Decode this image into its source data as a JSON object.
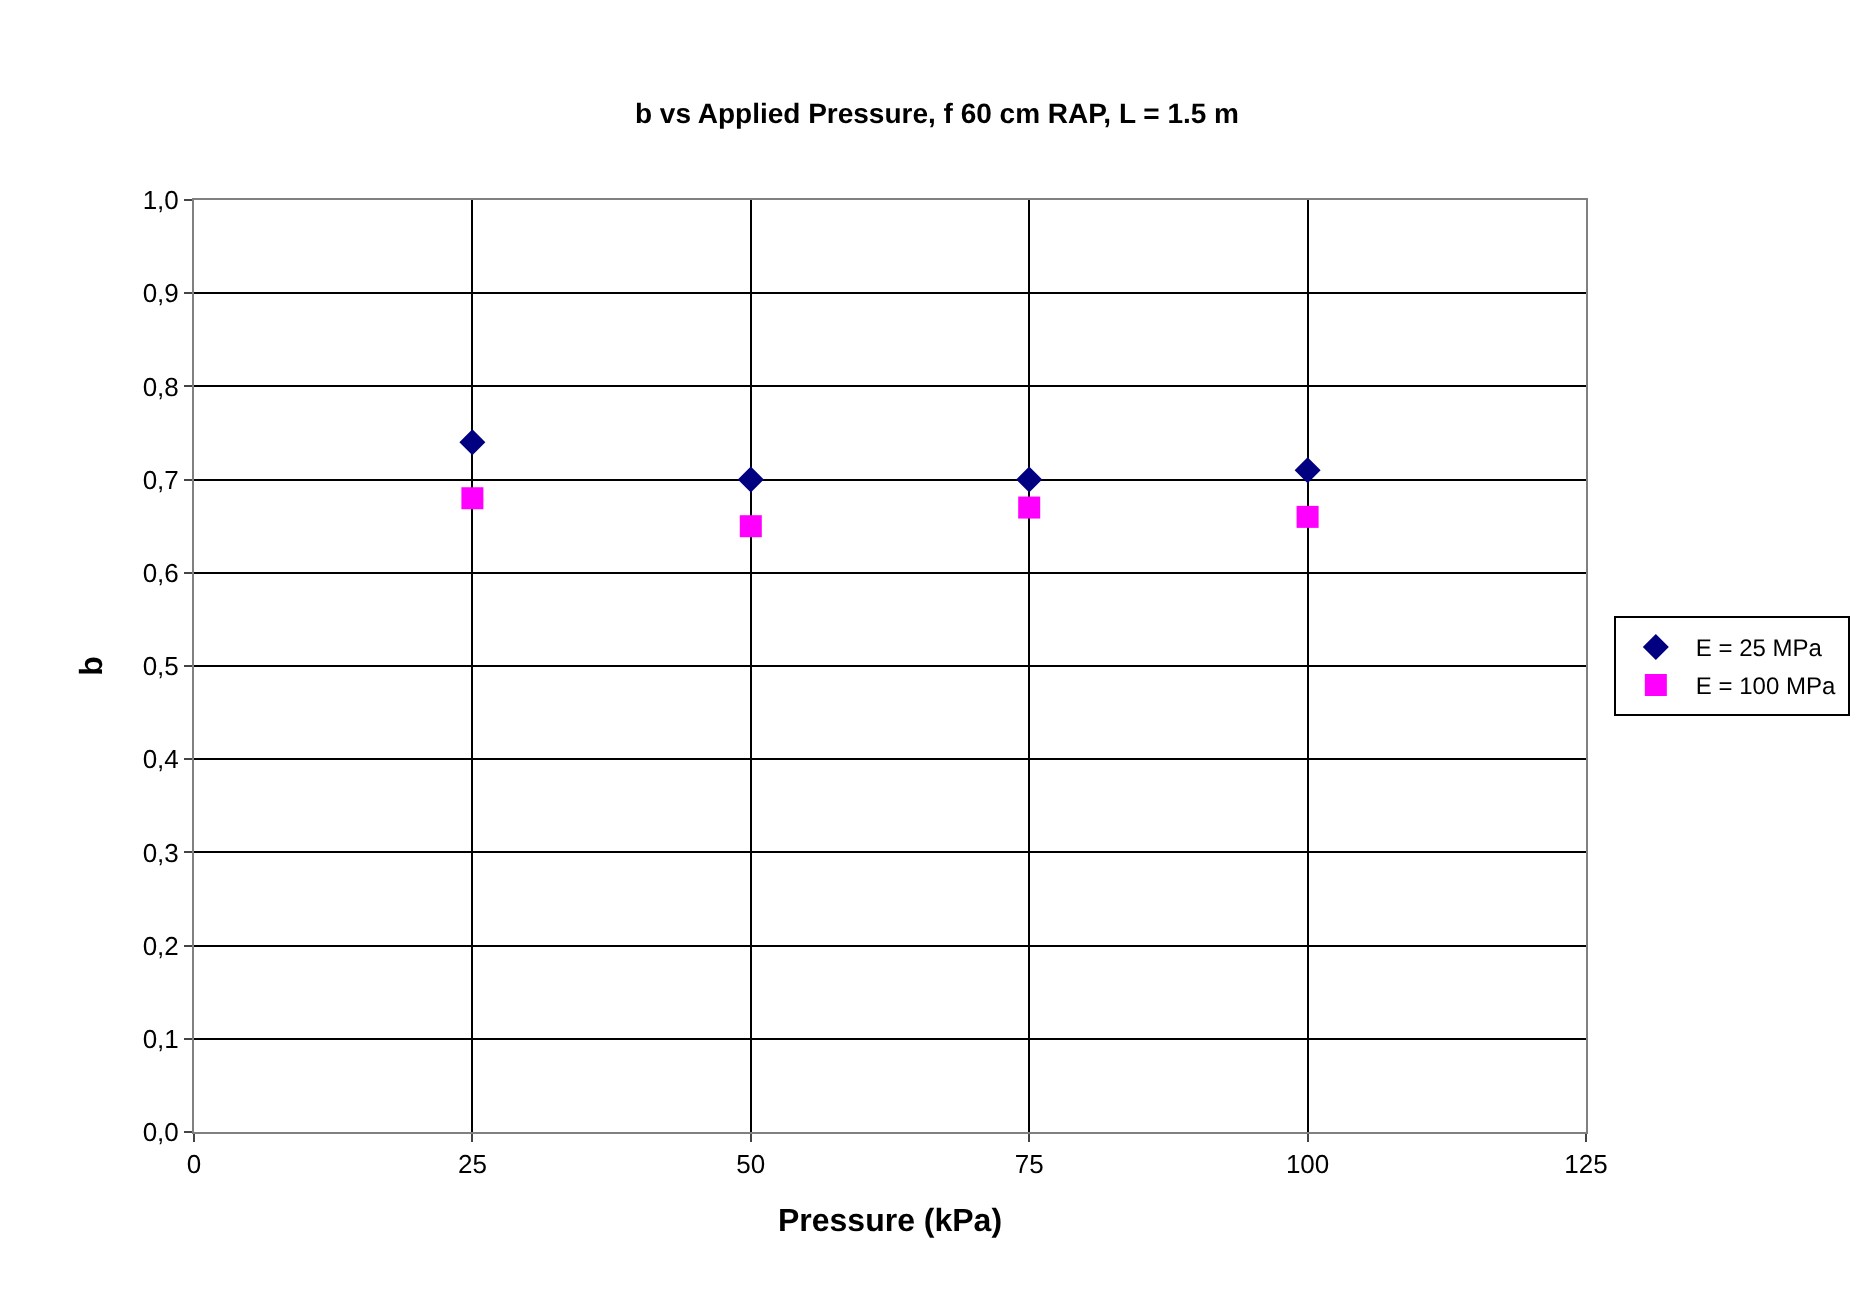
{
  "chart_data": {
    "type": "scatter",
    "title": "b vs Applied Pressure, f 60 cm RAP, L = 1.5 m",
    "xlabel": "Pressure (kPa)",
    "ylabel": "b",
    "x": [
      25,
      50,
      75,
      100
    ],
    "series": [
      {
        "name": "E = 25 MPa",
        "color": "#000080",
        "marker": "diamond",
        "values": [
          0.74,
          0.7,
          0.7,
          0.71
        ]
      },
      {
        "name": "E = 100 MPa",
        "color": "#ff00ff",
        "marker": "square",
        "values": [
          0.68,
          0.65,
          0.67,
          0.66
        ]
      }
    ],
    "xlim": [
      0,
      125
    ],
    "xticks": [
      0,
      25,
      50,
      75,
      100,
      125
    ],
    "ylim": [
      0,
      1.0
    ],
    "yticks": [
      {
        "value": 0,
        "label": "0,0"
      },
      {
        "value": 0.1,
        "label": "0,1"
      },
      {
        "value": 0.2,
        "label": "0,2"
      },
      {
        "value": 0.3,
        "label": "0,3"
      },
      {
        "value": 0.4,
        "label": "0,4"
      },
      {
        "value": 0.5,
        "label": "0,5"
      },
      {
        "value": 0.6,
        "label": "0,6"
      },
      {
        "value": 0.7,
        "label": "0,7"
      },
      {
        "value": 0.8,
        "label": "0,8"
      },
      {
        "value": 0.9,
        "label": "0,9"
      },
      {
        "value": 1.0,
        "label": "1,0"
      }
    ],
    "grid": true,
    "legend": "right"
  }
}
